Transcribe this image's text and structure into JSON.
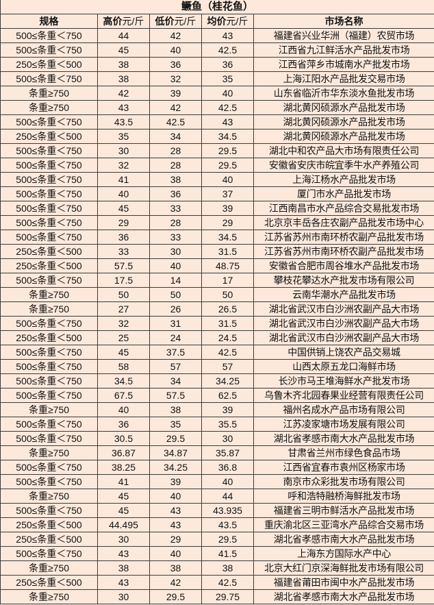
{
  "title": "鳜鱼（桂花鱼）",
  "headers": {
    "spec": "规格",
    "high": "高价",
    "low": "低价",
    "avg": "均价",
    "unit": "元/斤",
    "market": "市场名称"
  },
  "rows": [
    [
      "500≤条重＜750",
      "44",
      "42",
      "43",
      "福建省兴业华洲（福建）农贸市场"
    ],
    [
      "500≤条重＜750",
      "45",
      "40",
      "42.5",
      "江西省九江鲜活水产品批发市场"
    ],
    [
      "250≤条重＜500",
      "38",
      "36",
      "36",
      "江西省萍乡市城南水产批发市场"
    ],
    [
      "500≤条重＜750",
      "38",
      "32",
      "35",
      "上海江阳水产品批发交易市场"
    ],
    [
      "条重≥750",
      "42",
      "39",
      "40",
      "山东省临沂市华东淡水鱼批发市场"
    ],
    [
      "条重≥750",
      "43",
      "42",
      "42.5",
      "湖北黄冈硕源水产品批发市场"
    ],
    [
      "500≤条重＜750",
      "43.5",
      "42.5",
      "43",
      "湖北黄冈硕源水产品批发市场"
    ],
    [
      "250≤条重＜500",
      "35",
      "34",
      "34.5",
      "湖北黄冈硕源水产品批发市场"
    ],
    [
      "500≤条重＜750",
      "30",
      "28",
      "29.5",
      "湖北中和农产品大市场有限责任公司"
    ],
    [
      "500≤条重＜750",
      "32",
      "28",
      "29.5",
      "安徽省安庆市皖宜季牛水产养殖公司"
    ],
    [
      "500≤条重＜750",
      "41",
      "38",
      "40",
      "上海江杨水产品批发市场"
    ],
    [
      "500≤条重＜750",
      "40",
      "36",
      "37",
      "厦门市水产品批发市场"
    ],
    [
      "500≤条重＜750",
      "45",
      "33",
      "39",
      "江西南昌市水产品综合交易批发市场"
    ],
    [
      "500≤条重＜750",
      "29",
      "28",
      "29",
      "北京京丰岳各庄农副产品批发市场中心"
    ],
    [
      "500≤条重＜750",
      "36",
      "33",
      "34.5",
      "江苏省苏州市南环桥农副产品批发市场"
    ],
    [
      "250≤条重＜500",
      "33",
      "30",
      "31.5",
      "江苏省苏州市南环桥农副产品批发市场"
    ],
    [
      "250≤条重＜500",
      "57.5",
      "40",
      "48.75",
      "安徽省合肥市周谷堆水产品批发市场"
    ],
    [
      "500≤条重＜750",
      "17.5",
      "14",
      "17",
      "攀枝花攀达水产批发市场有限公司"
    ],
    [
      "条重≥750",
      "50",
      "50",
      "50",
      "云南华潮水产品批发市场"
    ],
    [
      "条重≥750",
      "27",
      "26",
      "26.5",
      "湖北省武汉市白沙洲农副产品大市场"
    ],
    [
      "500≤条重＜750",
      "32",
      "31",
      "31.5",
      "湖北省武汉市白沙洲农副产品大市场"
    ],
    [
      "250≤条重＜500",
      "25",
      "24",
      "24.5",
      "湖北省武汉市白沙洲农副产品大市场"
    ],
    [
      "500≤条重＜750",
      "45",
      "37.5",
      "42.5",
      "中国供销上饶农产品交易城"
    ],
    [
      "500≤条重＜750",
      "58",
      "57",
      "57",
      "山西太原五龙口海鲜市场"
    ],
    [
      "500≤条重＜750",
      "34.5",
      "34",
      "34.25",
      "长沙市马王堆海鲜水产批发市场"
    ],
    [
      "500≤条重＜750",
      "67.5",
      "57.5",
      "62.5",
      "乌鲁木齐北园春果业经营有限责任公司"
    ],
    [
      "条重≥750",
      "40",
      "38",
      "39",
      "福州名成水产品市场有限公司"
    ],
    [
      "500≤条重＜750",
      "36",
      "35",
      "35.5",
      "江苏凌家塘市场发展有限公司"
    ],
    [
      "500≤条重＜750",
      "30.5",
      "29.5",
      "30",
      "湖北省孝感市南大水产品批发市场"
    ],
    [
      "条重≥750",
      "36.87",
      "34.87",
      "35.87",
      "甘肃省兰州市绿色食品市场"
    ],
    [
      "500≤条重＜750",
      "38.25",
      "34.25",
      "36.8",
      "江西省宜春市袁州区杨家市场"
    ],
    [
      "500≤条重＜750",
      "41",
      "39",
      "40",
      "南京市众彩批发市场有限公司"
    ],
    [
      "条重≥750",
      "45",
      "40",
      "44",
      "呼和浩特融桥海鲜批发市场"
    ],
    [
      "500≤条重＜750",
      "45",
      "43",
      "43.935",
      "福建省三明市鲜活水产品批发市场"
    ],
    [
      "250≤条重＜500",
      "44.495",
      "43",
      "43.5",
      "重庆渝北区三亚湾水产品综合交易市场"
    ],
    [
      "250≤条重＜500",
      "30",
      "29",
      "29.5",
      "湖北省孝感市南大水产品批发市场"
    ],
    [
      "500≤条重＜750",
      "43",
      "40",
      "41.5",
      "上海东方国际水产中心"
    ],
    [
      "条重≥750",
      "38",
      "38",
      "38",
      "北京大红门京深海鲜批发市场有限公司"
    ],
    [
      "250≤条重＜500",
      "43",
      "42",
      "42.5",
      "福建省莆田市闽中水产品批发市场"
    ],
    [
      "条重≥750",
      "30",
      "29.5",
      "29.75",
      "湖北省孝感市南大水产品批发市场"
    ]
  ]
}
